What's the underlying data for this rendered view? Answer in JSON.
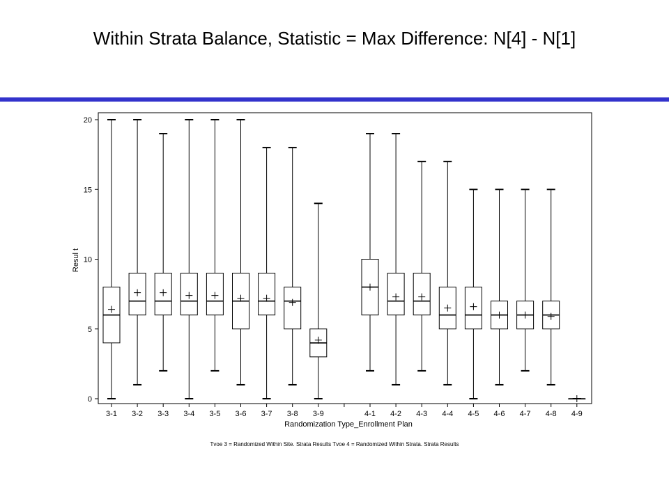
{
  "title": "Within Strata Balance, Statistic = Max Difference: N[4] - N[1]",
  "footnote": "Tvoe 3 = Randomized Within Site. Strata Results    Tvoe 4 = Randomized Within Strata. Strata Results",
  "colors": {
    "rule": "#3333cc",
    "box_stroke": "#000000",
    "background": "#ffffff"
  },
  "chart_data": {
    "type": "box",
    "title": "",
    "xlabel": "Randomization Type_Enrollment Plan",
    "ylabel": "Resul t",
    "ylim": [
      0,
      20
    ],
    "yticks": [
      0,
      5,
      10,
      15,
      20
    ],
    "grid": false,
    "categories": [
      "3-1",
      "3-2",
      "3-3",
      "3-4",
      "3-5",
      "3-6",
      "3-7",
      "3-8",
      "3-9",
      "",
      "4-1",
      "4-2",
      "4-3",
      "4-4",
      "4-5",
      "4-6",
      "4-7",
      "4-8",
      "4-9"
    ],
    "boxes": [
      {
        "label": "3-1",
        "min": 0,
        "q1": 4,
        "median": 6,
        "q3": 8,
        "max": 20,
        "mean": 6.4
      },
      {
        "label": "3-2",
        "min": 1,
        "q1": 6,
        "median": 7,
        "q3": 9,
        "max": 20,
        "mean": 7.6
      },
      {
        "label": "3-3",
        "min": 2,
        "q1": 6,
        "median": 7,
        "q3": 9,
        "max": 19,
        "mean": 7.6
      },
      {
        "label": "3-4",
        "min": 0,
        "q1": 6,
        "median": 7,
        "q3": 9,
        "max": 20,
        "mean": 7.4
      },
      {
        "label": "3-5",
        "min": 2,
        "q1": 6,
        "median": 7,
        "q3": 9,
        "max": 20,
        "mean": 7.4
      },
      {
        "label": "3-6",
        "min": 1,
        "q1": 5,
        "median": 7,
        "q3": 9,
        "max": 20,
        "mean": 7.2
      },
      {
        "label": "3-7",
        "min": 0,
        "q1": 6,
        "median": 7,
        "q3": 9,
        "max": 18,
        "mean": 7.2
      },
      {
        "label": "3-8",
        "min": 1,
        "q1": 5,
        "median": 7,
        "q3": 8,
        "max": 18,
        "mean": 6.9
      },
      {
        "label": "3-9",
        "min": 0,
        "q1": 3,
        "median": 4,
        "q3": 5,
        "max": 14,
        "mean": 4.2
      },
      null,
      {
        "label": "4-1",
        "min": 2,
        "q1": 6,
        "median": 8,
        "q3": 10,
        "max": 19,
        "mean": 8.0
      },
      {
        "label": "4-2",
        "min": 1,
        "q1": 6,
        "median": 7,
        "q3": 9,
        "max": 19,
        "mean": 7.3
      },
      {
        "label": "4-3",
        "min": 2,
        "q1": 6,
        "median": 7,
        "q3": 9,
        "max": 17,
        "mean": 7.3
      },
      {
        "label": "4-4",
        "min": 1,
        "q1": 5,
        "median": 6,
        "q3": 8,
        "max": 17,
        "mean": 6.5
      },
      {
        "label": "4-5",
        "min": 0,
        "q1": 5,
        "median": 6,
        "q3": 8,
        "max": 15,
        "mean": 6.6
      },
      {
        "label": "4-6",
        "min": 1,
        "q1": 5,
        "median": 6,
        "q3": 7,
        "max": 15,
        "mean": 6.0
      },
      {
        "label": "4-7",
        "min": 2,
        "q1": 5,
        "median": 6,
        "q3": 7,
        "max": 15,
        "mean": 6.0
      },
      {
        "label": "4-8",
        "min": 1,
        "q1": 5,
        "median": 6,
        "q3": 7,
        "max": 15,
        "mean": 5.9
      },
      {
        "label": "4-9",
        "min": 0,
        "q1": 0,
        "median": 0,
        "q3": 0,
        "max": 0,
        "mean": 0
      }
    ]
  }
}
